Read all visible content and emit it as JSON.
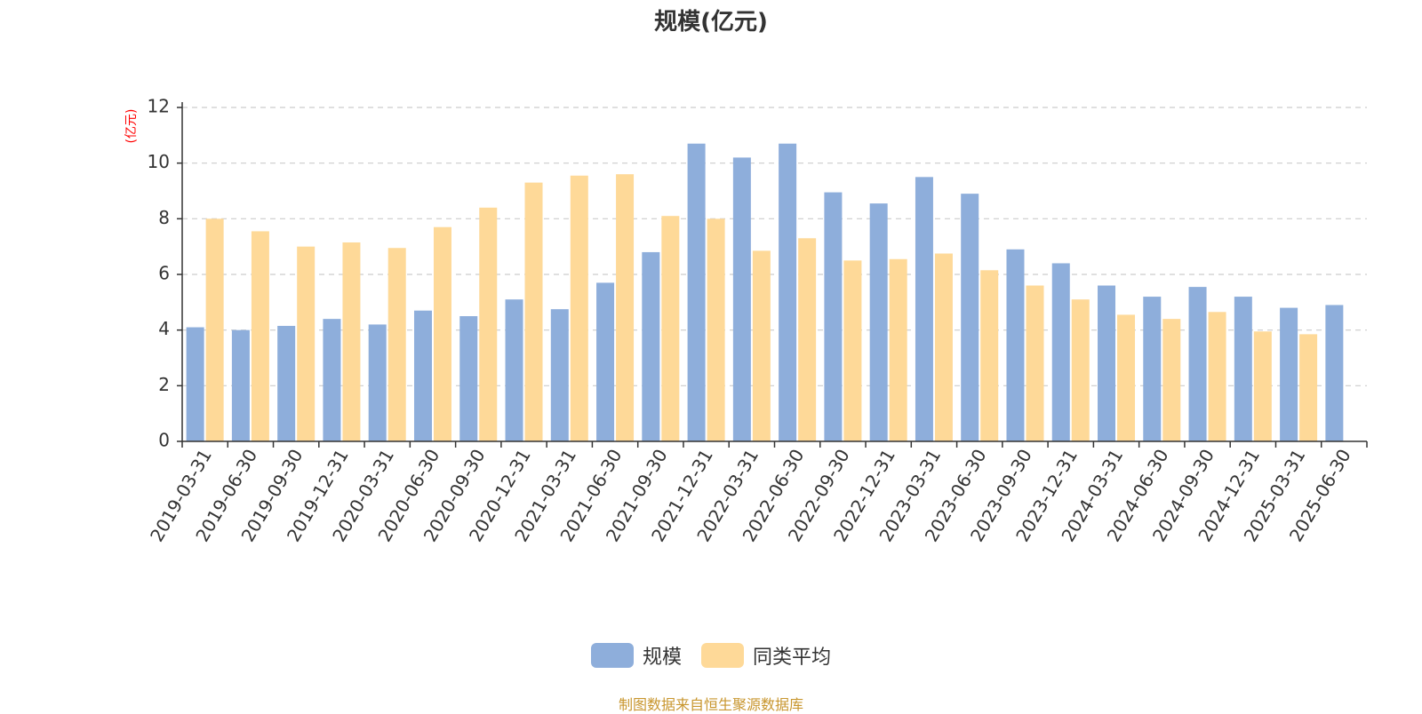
{
  "title": "规模(亿元)",
  "source_note": "制图数据来自恒生聚源数据库",
  "colors": {
    "scale": "#8eaedb",
    "peer_avg": "#fed998",
    "axis": "#333333",
    "grid": "#cccccc",
    "ylabel": "#ff0000"
  },
  "chart_data": {
    "type": "bar",
    "title": "规模(亿元)",
    "ylabel": "(亿元)",
    "xlabel": "",
    "ylim": [
      0,
      12
    ],
    "yticks": [
      0,
      2,
      4,
      6,
      8,
      10,
      12
    ],
    "grid": true,
    "legend_position": "bottom-center",
    "categories": [
      "2019-03-31",
      "2019-06-30",
      "2019-09-30",
      "2019-12-31",
      "2020-03-31",
      "2020-06-30",
      "2020-09-30",
      "2020-12-31",
      "2021-03-31",
      "2021-06-30",
      "2021-09-30",
      "2021-12-31",
      "2022-03-31",
      "2022-06-30",
      "2022-09-30",
      "2022-12-31",
      "2023-03-31",
      "2023-06-30",
      "2023-09-30",
      "2023-12-31",
      "2024-03-31",
      "2024-06-30",
      "2024-09-30",
      "2024-12-31",
      "2025-03-31",
      "2025-06-30"
    ],
    "series": [
      {
        "name": "规模",
        "color": "#8eaedb",
        "values": [
          4.1,
          4.0,
          4.15,
          4.4,
          4.2,
          4.7,
          4.5,
          5.1,
          4.75,
          5.7,
          6.8,
          10.7,
          10.2,
          10.7,
          8.95,
          8.55,
          9.5,
          8.9,
          6.9,
          6.4,
          5.6,
          5.2,
          5.55,
          5.2,
          4.8,
          4.9
        ]
      },
      {
        "name": "同类平均",
        "color": "#fed998",
        "values": [
          8.0,
          7.55,
          7.0,
          7.15,
          6.95,
          7.7,
          8.4,
          9.3,
          9.55,
          9.6,
          8.1,
          8.0,
          6.85,
          7.3,
          6.5,
          6.55,
          6.75,
          6.15,
          5.6,
          5.1,
          4.55,
          4.4,
          4.65,
          3.95,
          3.85,
          null
        ]
      }
    ]
  }
}
